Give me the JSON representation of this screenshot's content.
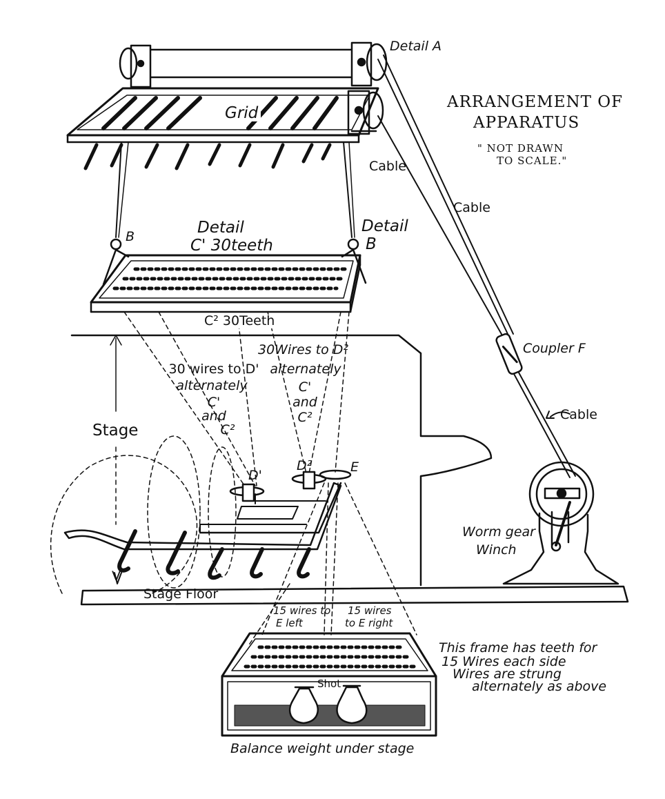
{
  "labels": {
    "detail_a": "Detail A",
    "title_line1": "ARRANGEMENT OF",
    "title_line2": "APPARATUS",
    "not_drawn_1": "\" NOT DRAWN",
    "not_drawn_2": "TO SCALE.\"",
    "grid": "Grid",
    "cable_1": "Cable",
    "cable_2": "Cable",
    "cable_3": "Cable",
    "b_left": "B",
    "detail_c1": "Detail",
    "detail_c1_b": "C' 30teeth",
    "detail_b": "Detail",
    "detail_b_letter": "B",
    "c2_30_teeth": "C² 30Teeth",
    "wires_d1_1": "30 wires to D'",
    "wires_d1_2": "alternately",
    "wires_d1_3": "C'",
    "wires_d1_4": "and",
    "wires_d1_5": "C²",
    "wires_d2_1": "30Wires to D²",
    "wires_d2_2": "alternately",
    "wires_d2_3": "C'",
    "wires_d2_4": "and",
    "wires_d2_5": "C²",
    "coupler_f": "Coupler F",
    "stage": "Stage",
    "d1": "D'",
    "d2": "D²",
    "e": "E",
    "worm_gear_1": "Worm gear",
    "worm_gear_2": "Winch",
    "stage_floor": "Stage Floor",
    "v": "V",
    "wires_e_left_1": "15 wires to",
    "wires_e_left_2": "E left",
    "wires_e_right_1": "15 wires",
    "wires_e_right_2": "to E right",
    "frame_note_1": "This frame has teeth for",
    "frame_note_2": "15 Wires each side",
    "frame_note_3": "Wires are strung",
    "frame_note_4": "alternately as above",
    "shot": "Shot",
    "balance_weight": "Balance weight under stage"
  }
}
